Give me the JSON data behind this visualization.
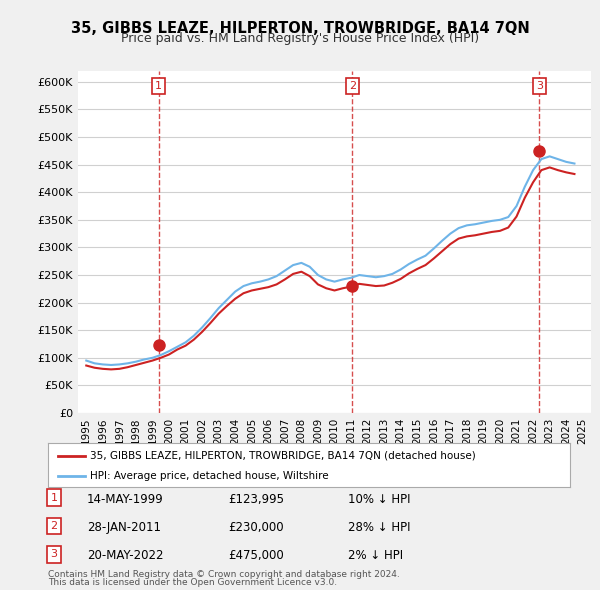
{
  "title": "35, GIBBS LEAZE, HILPERTON, TROWBRIDGE, BA14 7QN",
  "subtitle": "Price paid vs. HM Land Registry's House Price Index (HPI)",
  "legend_line1": "35, GIBBS LEAZE, HILPERTON, TROWBRIDGE, BA14 7QN (detached house)",
  "legend_line2": "HPI: Average price, detached house, Wiltshire",
  "footer1": "Contains HM Land Registry data © Crown copyright and database right 2024.",
  "footer2": "This data is licensed under the Open Government Licence v3.0.",
  "transactions": [
    {
      "label": "1",
      "date": "14-MAY-1999",
      "price": "£123,995",
      "pct": "10% ↓ HPI",
      "year": 1999.37
    },
    {
      "label": "2",
      "date": "28-JAN-2011",
      "price": "£230,000",
      "pct": "28% ↓ HPI",
      "year": 2011.08
    },
    {
      "label": "3",
      "date": "20-MAY-2022",
      "price": "£475,000",
      "pct": "2% ↓ HPI",
      "year": 2022.38
    }
  ],
  "hpi_years": [
    1995,
    1995.5,
    1996,
    1996.5,
    1997,
    1997.5,
    1998,
    1998.5,
    1999,
    1999.5,
    2000,
    2000.5,
    2001,
    2001.5,
    2002,
    2002.5,
    2003,
    2003.5,
    2004,
    2004.5,
    2005,
    2005.5,
    2006,
    2006.5,
    2007,
    2007.5,
    2008,
    2008.5,
    2009,
    2009.5,
    2010,
    2010.5,
    2011,
    2011.5,
    2012,
    2012.5,
    2013,
    2013.5,
    2014,
    2014.5,
    2015,
    2015.5,
    2016,
    2016.5,
    2017,
    2017.5,
    2018,
    2018.5,
    2019,
    2019.5,
    2020,
    2020.5,
    2021,
    2021.5,
    2022,
    2022.5,
    2023,
    2023.5,
    2024,
    2024.5
  ],
  "hpi_values": [
    95000,
    90000,
    88000,
    87000,
    88000,
    90000,
    93000,
    97000,
    100000,
    105000,
    112000,
    120000,
    128000,
    140000,
    155000,
    172000,
    190000,
    205000,
    220000,
    230000,
    235000,
    238000,
    242000,
    248000,
    258000,
    268000,
    272000,
    265000,
    250000,
    242000,
    238000,
    242000,
    245000,
    250000,
    248000,
    246000,
    248000,
    252000,
    260000,
    270000,
    278000,
    285000,
    298000,
    312000,
    325000,
    335000,
    340000,
    342000,
    345000,
    348000,
    350000,
    355000,
    375000,
    410000,
    440000,
    460000,
    465000,
    460000,
    455000,
    452000
  ],
  "price_years": [
    1995,
    1995.5,
    1996,
    1996.5,
    1997,
    1997.5,
    1998,
    1998.5,
    1999,
    1999.5,
    2000,
    2000.5,
    2001,
    2001.5,
    2002,
    2002.5,
    2003,
    2003.5,
    2004,
    2004.5,
    2005,
    2005.5,
    2006,
    2006.5,
    2007,
    2007.5,
    2008,
    2008.5,
    2009,
    2009.5,
    2010,
    2010.5,
    2011,
    2011.5,
    2012,
    2012.5,
    2013,
    2013.5,
    2014,
    2014.5,
    2015,
    2015.5,
    2016,
    2016.5,
    2017,
    2017.5,
    2018,
    2018.5,
    2019,
    2019.5,
    2020,
    2020.5,
    2021,
    2021.5,
    2022,
    2022.5,
    2023,
    2023.5,
    2024,
    2024.5
  ],
  "price_values": [
    86000,
    82000,
    80000,
    79000,
    80000,
    83000,
    87000,
    91000,
    95000,
    100000,
    106000,
    115000,
    122000,
    133000,
    147000,
    163000,
    180000,
    194000,
    207000,
    217000,
    222000,
    225000,
    228000,
    233000,
    242000,
    252000,
    256000,
    248000,
    233000,
    226000,
    222000,
    226000,
    229000,
    234000,
    232000,
    230000,
    231000,
    236000,
    243000,
    253000,
    261000,
    268000,
    280000,
    293000,
    306000,
    316000,
    320000,
    322000,
    325000,
    328000,
    330000,
    336000,
    356000,
    390000,
    418000,
    440000,
    445000,
    440000,
    436000,
    433000
  ],
  "sale_years": [
    1999.37,
    2011.08,
    2022.38
  ],
  "sale_prices": [
    123995,
    230000,
    475000
  ],
  "vline_years": [
    1999.37,
    2011.08,
    2022.38
  ],
  "ylim": [
    0,
    620000
  ],
  "xlim": [
    1994.5,
    2025.5
  ],
  "yticks": [
    0,
    50000,
    100000,
    150000,
    200000,
    250000,
    300000,
    350000,
    400000,
    450000,
    500000,
    550000,
    600000
  ],
  "xticks": [
    1995,
    1996,
    1997,
    1998,
    1999,
    2000,
    2001,
    2002,
    2003,
    2004,
    2005,
    2006,
    2007,
    2008,
    2009,
    2010,
    2011,
    2012,
    2013,
    2014,
    2015,
    2016,
    2017,
    2018,
    2019,
    2020,
    2021,
    2022,
    2023,
    2024,
    2025
  ],
  "hpi_color": "#6eb4e8",
  "price_color": "#cc2222",
  "vline_color": "#cc2222",
  "bg_color": "#f0f0f0",
  "plot_bg": "#ffffff",
  "grid_color": "#d0d0d0"
}
